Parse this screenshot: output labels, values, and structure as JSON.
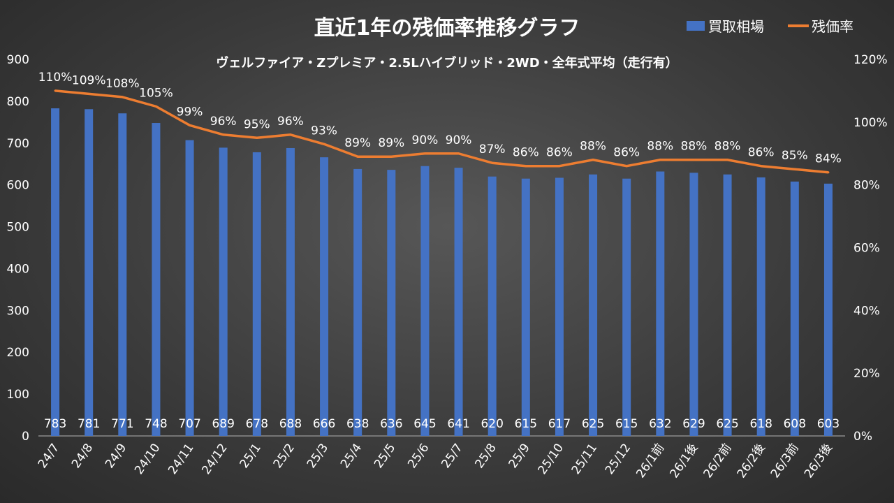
{
  "chart_data": {
    "type": "bar+line",
    "title": "直近1年の残価率推移グラフ",
    "subtitle": "ヴェルファイア・Zプレミア・2.5Lハイブリッド・2WD・全年式平均（走行有）",
    "legend_position": "top-right",
    "categories": [
      "24/7",
      "24/8",
      "24/9",
      "24/10",
      "24/11",
      "24/12",
      "25/1",
      "25/2",
      "25/3",
      "25/4",
      "25/5",
      "25/6",
      "25/7",
      "25/8",
      "25/9",
      "25/10",
      "25/11",
      "25/12",
      "26/1前",
      "26/1後",
      "26/2前",
      "26/2後",
      "26/3前",
      "26/3後"
    ],
    "series": [
      {
        "name": "買取相場",
        "type": "bar",
        "axis": "left",
        "color": "#4472C4",
        "values": [
          783,
          781,
          771,
          748,
          707,
          689,
          678,
          688,
          666,
          638,
          636,
          645,
          641,
          620,
          615,
          617,
          625,
          615,
          632,
          629,
          625,
          618,
          608,
          603
        ]
      },
      {
        "name": "残価率",
        "type": "line",
        "axis": "right",
        "color": "#ED7D31",
        "values": [
          110,
          109,
          108,
          105,
          99,
          96,
          95,
          96,
          93,
          89,
          89,
          90,
          90,
          87,
          86,
          86,
          88,
          86,
          88,
          88,
          88,
          86,
          85,
          84
        ],
        "value_suffix": "%"
      }
    ],
    "y_left": {
      "min": 0,
      "max": 900,
      "ticks": [
        "0",
        "100",
        "200",
        "300",
        "400",
        "500",
        "600",
        "700",
        "800",
        "900"
      ]
    },
    "y_right": {
      "min": 0,
      "max": 120,
      "ticks": [
        "0%",
        "20%",
        "40%",
        "60%",
        "80%",
        "100%",
        "120%"
      ]
    },
    "grid": false
  }
}
